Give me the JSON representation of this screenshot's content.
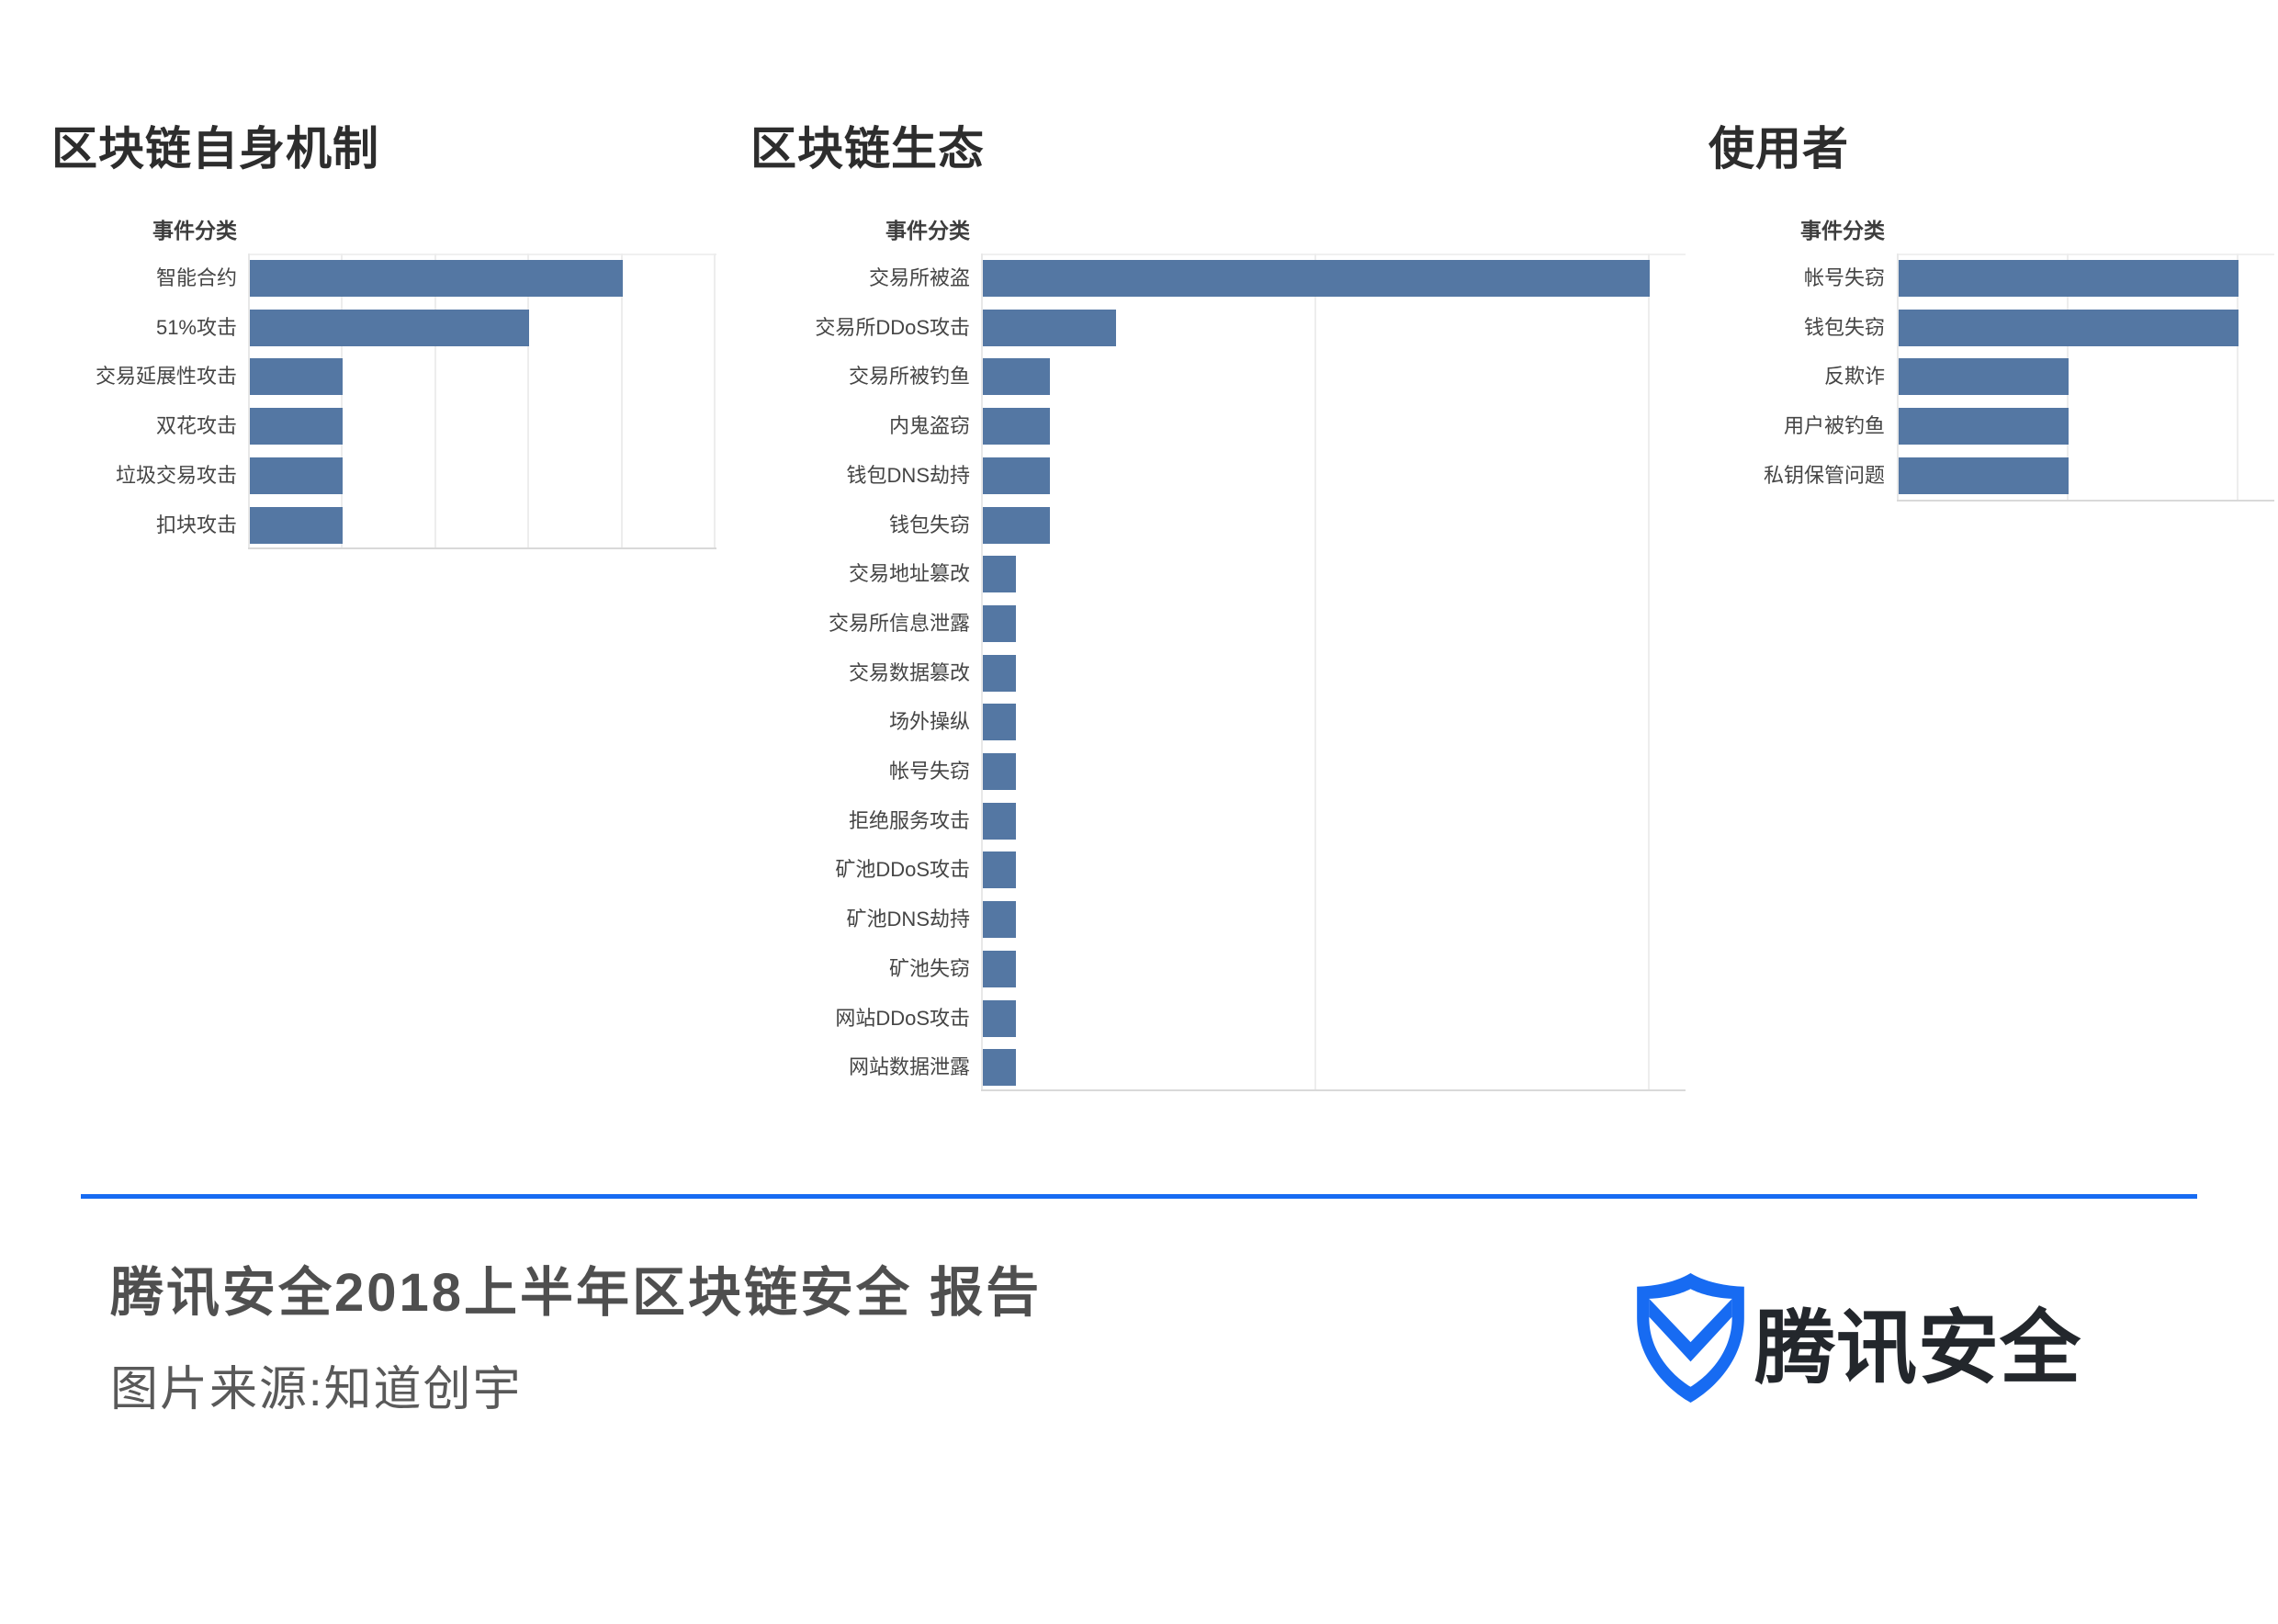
{
  "page": {
    "background": "#ffffff"
  },
  "colors": {
    "bar": "#5477A3",
    "accent": "#176BF2",
    "grid": "#ededed",
    "axis_line": "#d9d9d9",
    "axis_left": "#e8e8e8",
    "plot_top": "#f0f0f0",
    "label": "#454545",
    "header": "#3d3d3d",
    "chart_title": "#2d2d2d",
    "footer_title": "#4f4f4f",
    "footer_source": "#595959",
    "logo_text": "#23272c"
  },
  "charts": [
    {
      "id": "blockchain-mechanism",
      "title": "区块链自身机制",
      "column_header": "事件分类",
      "rows": [
        {
          "label": "智能合约",
          "value": 4
        },
        {
          "label": "51%攻击",
          "value": 3
        },
        {
          "label": "交易延展性攻击",
          "value": 1
        },
        {
          "label": "双花攻击",
          "value": 1
        },
        {
          "label": "垃圾交易攻击",
          "value": 1
        },
        {
          "label": "扣块攻击",
          "value": 1
        }
      ],
      "axis": {
        "max_units": 5.03,
        "gridline_units": [
          1,
          2,
          3,
          4,
          5
        ]
      }
    },
    {
      "id": "blockchain-ecosystem",
      "title": "区块链生态",
      "column_header": "事件分类",
      "rows": [
        {
          "label": "交易所被盗",
          "value": 20
        },
        {
          "label": "交易所DDoS攻击",
          "value": 4
        },
        {
          "label": "交易所被钓鱼",
          "value": 2
        },
        {
          "label": "内鬼盗窃",
          "value": 2
        },
        {
          "label": "钱包DNS劫持",
          "value": 2
        },
        {
          "label": "钱包失窃",
          "value": 2
        },
        {
          "label": "交易地址篡改",
          "value": 1
        },
        {
          "label": "交易所信息泄露",
          "value": 1
        },
        {
          "label": "交易数据篡改",
          "value": 1
        },
        {
          "label": "场外操纵",
          "value": 1
        },
        {
          "label": "帐号失窃",
          "value": 1
        },
        {
          "label": "拒绝服务攻击",
          "value": 1
        },
        {
          "label": "矿池DDoS攻击",
          "value": 1
        },
        {
          "label": "矿池DNS劫持",
          "value": 1
        },
        {
          "label": "矿池失窃",
          "value": 1
        },
        {
          "label": "网站DDoS攻击",
          "value": 1
        },
        {
          "label": "网站数据泄露",
          "value": 1
        }
      ],
      "axis": {
        "max_units": 21.13,
        "gridline_units": [
          10,
          20
        ]
      }
    },
    {
      "id": "users",
      "title": "使用者",
      "column_header": "事件分类",
      "rows": [
        {
          "label": "帐号失窃",
          "value": 2
        },
        {
          "label": "钱包失窃",
          "value": 2
        },
        {
          "label": "反欺诈",
          "value": 1
        },
        {
          "label": "用户被钓鱼",
          "value": 1
        },
        {
          "label": "私钥保管问题",
          "value": 1
        }
      ],
      "axis": {
        "max_units": 2.22,
        "gridline_units": [
          1,
          2
        ]
      }
    }
  ],
  "footer": {
    "title": "腾讯安全2018上半年区块链安全 报告",
    "source": "图片来源:知道创宇",
    "logo_text": "腾讯安全"
  },
  "chart_data": [
    {
      "type": "bar",
      "orientation": "horizontal",
      "title": "区块链自身机制",
      "column_header": "事件分类",
      "categories": [
        "智能合约",
        "51%攻击",
        "交易延展性攻击",
        "双花攻击",
        "垃圾交易攻击",
        "扣块攻击"
      ],
      "values": [
        4,
        3,
        1,
        1,
        1,
        1
      ],
      "xlabel": "",
      "ylabel": "事件分类",
      "xlim": [
        0,
        5
      ],
      "grid": true,
      "legend": false,
      "note": "No numeric axis labels shown; values are relative units estimated from unlabeled gridlines."
    },
    {
      "type": "bar",
      "orientation": "horizontal",
      "title": "区块链生态",
      "column_header": "事件分类",
      "categories": [
        "交易所被盗",
        "交易所DDoS攻击",
        "交易所被钓鱼",
        "内鬼盗窃",
        "钱包DNS劫持",
        "钱包失窃",
        "交易地址篡改",
        "交易所信息泄露",
        "交易数据篡改",
        "场外操纵",
        "帐号失窃",
        "拒绝服务攻击",
        "矿池DDoS攻击",
        "矿池DNS劫持",
        "矿池失窃",
        "网站DDoS攻击",
        "网站数据泄露"
      ],
      "values": [
        20,
        4,
        2,
        2,
        2,
        2,
        1,
        1,
        1,
        1,
        1,
        1,
        1,
        1,
        1,
        1,
        1
      ],
      "xlabel": "",
      "ylabel": "事件分类",
      "xlim": [
        0,
        21
      ],
      "grid": true,
      "legend": false,
      "note": "No numeric axis labels shown; values are relative units estimated from unlabeled gridlines at 10 and 20."
    },
    {
      "type": "bar",
      "orientation": "horizontal",
      "title": "使用者",
      "column_header": "事件分类",
      "categories": [
        "帐号失窃",
        "钱包失窃",
        "反欺诈",
        "用户被钓鱼",
        "私钥保管问题"
      ],
      "values": [
        2,
        2,
        1,
        1,
        1
      ],
      "xlabel": "",
      "ylabel": "事件分类",
      "xlim": [
        0,
        2.2
      ],
      "grid": true,
      "legend": false,
      "note": "No numeric axis labels shown; values are relative units estimated from unlabeled gridlines."
    }
  ]
}
